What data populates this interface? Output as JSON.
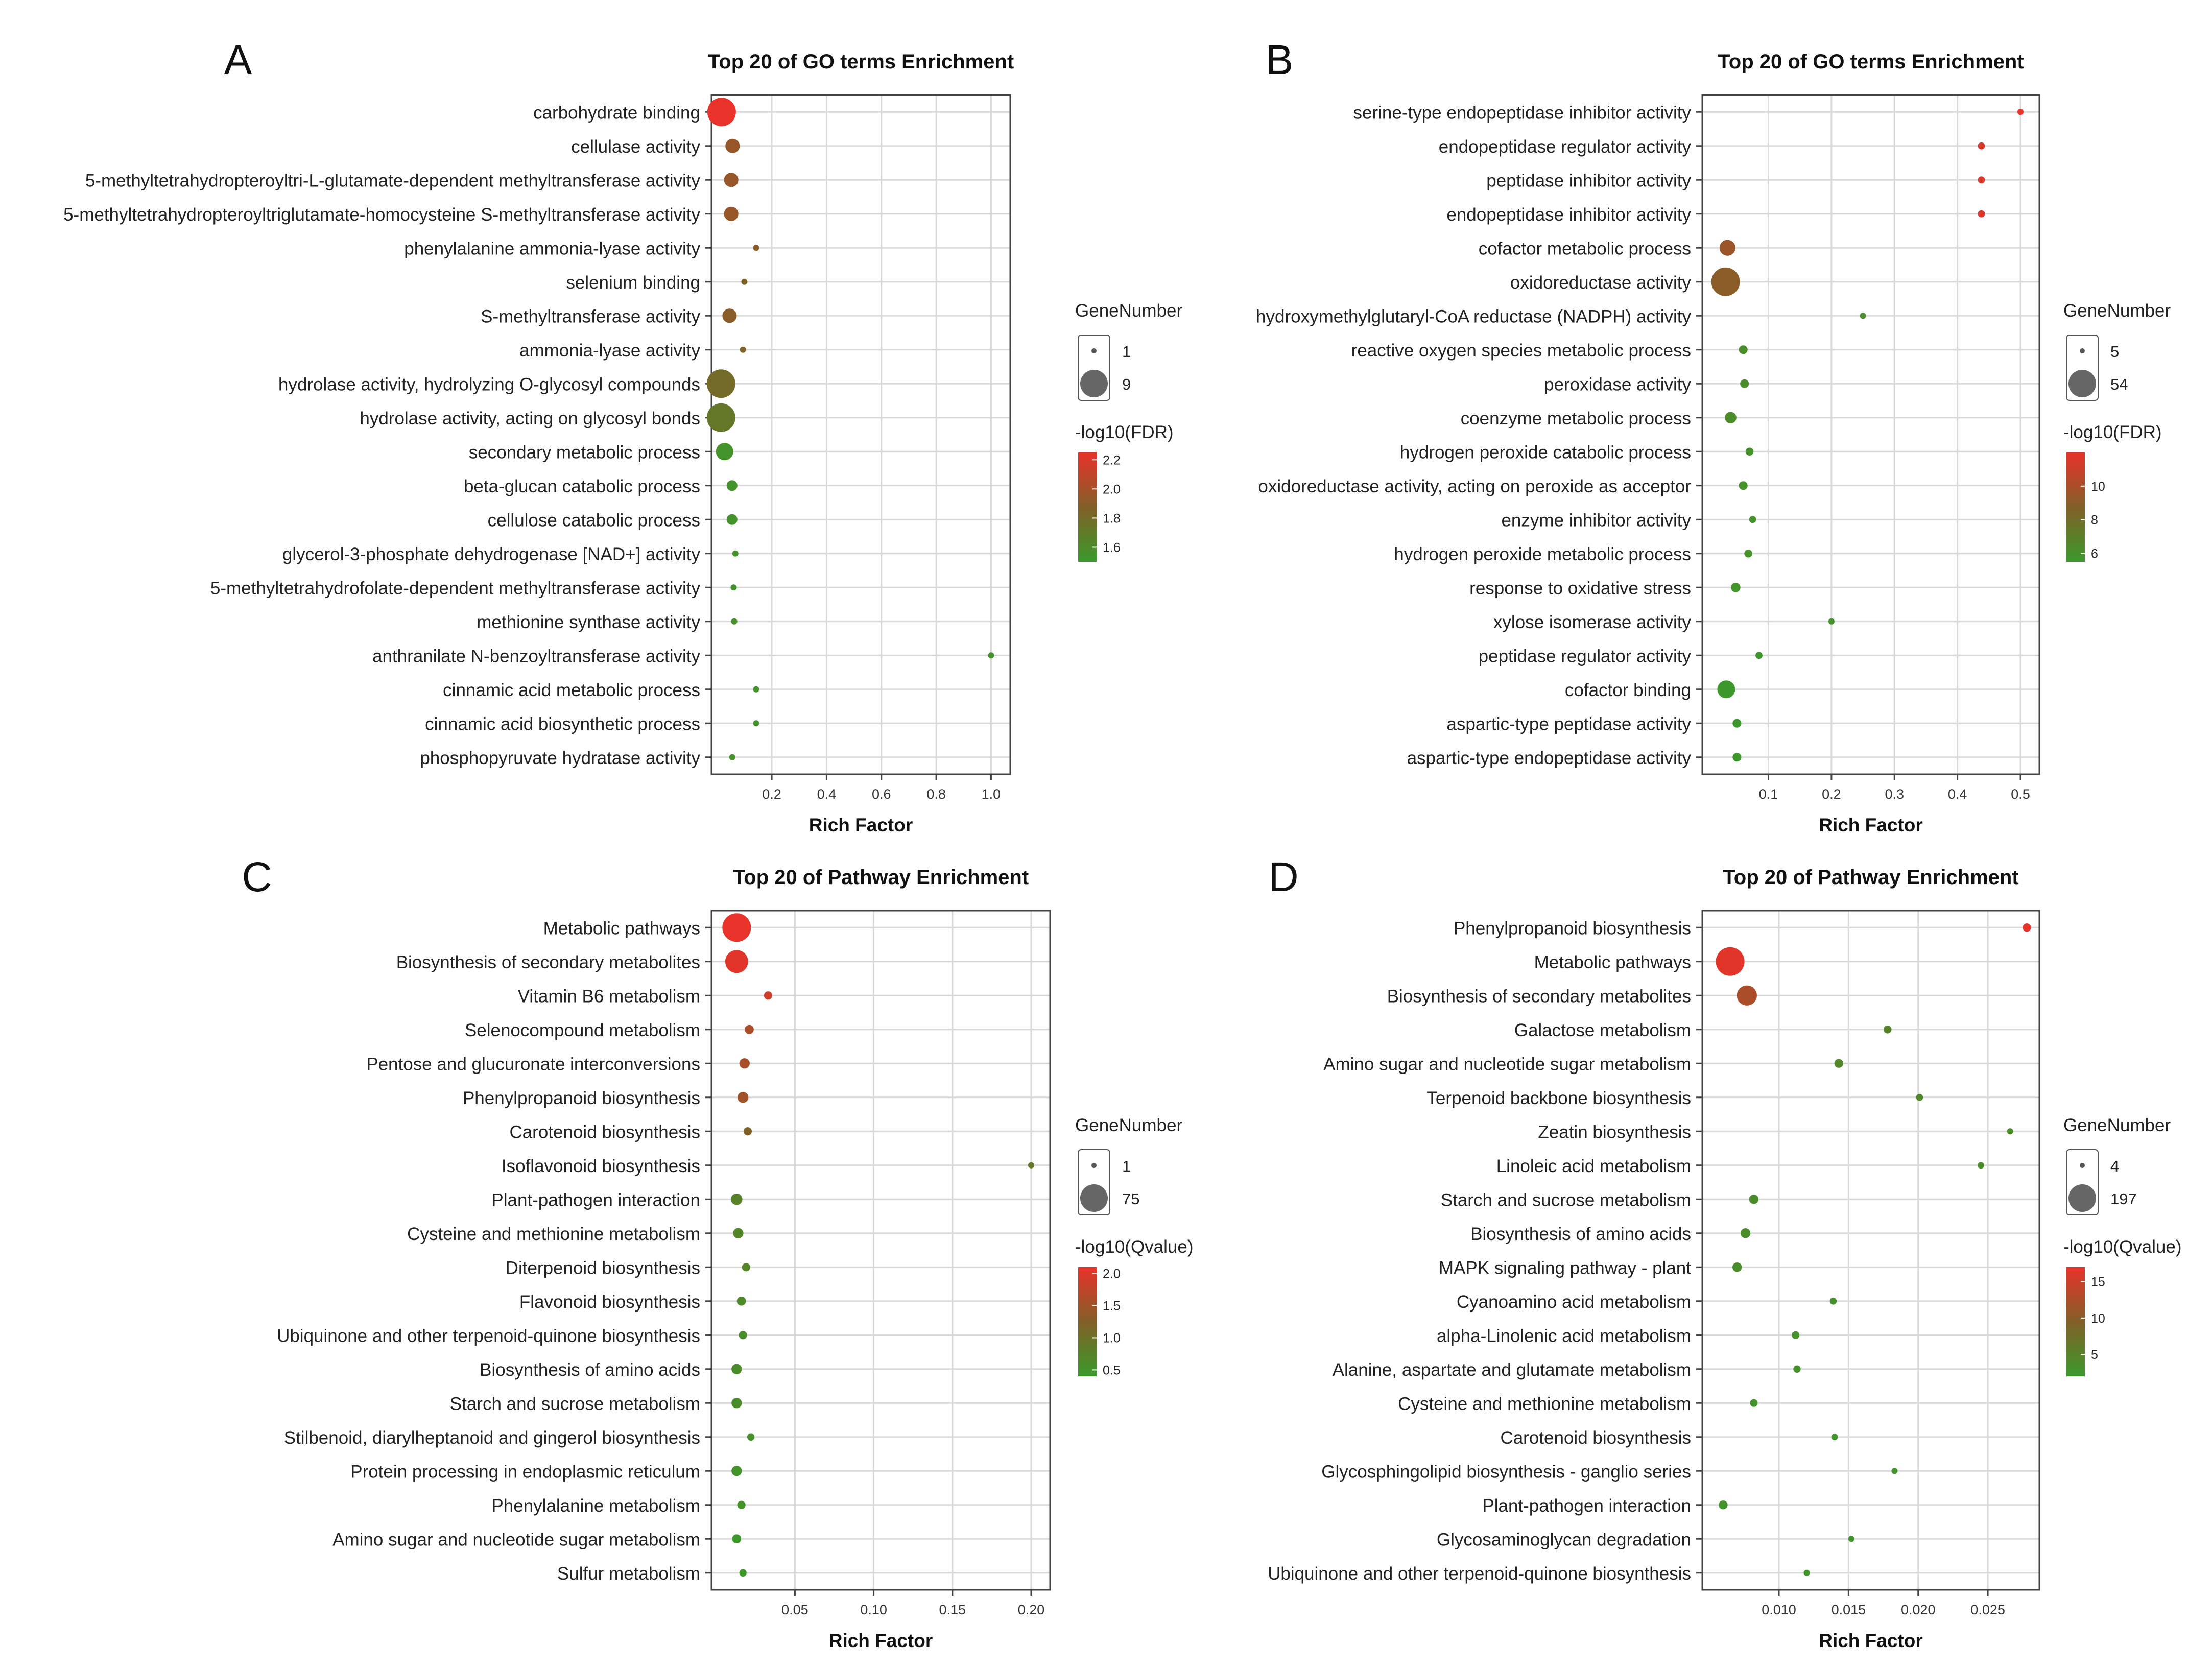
{
  "chart_data": [
    {
      "panel": "A",
      "type": "scatter",
      "title": "Top 20 of GO terms Enrichment",
      "xlabel": "Rich Factor",
      "ylabel": "",
      "xlim": [
        -0.02,
        1.07
      ],
      "xticks": [
        0.2,
        0.4,
        0.6,
        0.8,
        1.0
      ],
      "xtick_labels": [
        "0.2",
        "0.4",
        "0.6",
        "0.8",
        "1.0"
      ],
      "grid": true,
      "size_legend": {
        "title": "GeneNumber",
        "min": 1,
        "max": 9,
        "labels": [
          "1",
          "9"
        ]
      },
      "color_legend": {
        "title": "-log10(FDR)",
        "min": 1.5,
        "max": 2.25,
        "low_color": "#3a9a2a",
        "high_color": "#e8322a",
        "ticks": [
          2.2,
          2.0,
          1.8,
          1.6
        ],
        "tick_labels": [
          "2.2",
          "2.0",
          "1.8",
          "1.6"
        ]
      },
      "categories": [
        "carbohydrate binding",
        "cellulase activity",
        "5-methyltetrahydropteroyltri-L-glutamate-dependent methyltransferase activity",
        "5-methyltetrahydropteroyltriglutamate-homocysteine S-methyltransferase activity",
        "phenylalanine ammonia-lyase activity",
        "selenium binding",
        "S-methyltransferase activity",
        "ammonia-lyase activity",
        "hydrolase activity, hydrolyzing O-glycosyl compounds",
        "hydrolase activity, acting on glycosyl bonds",
        "secondary metabolic process",
        "beta-glucan catabolic process",
        "cellulose catabolic process",
        "glycerol-3-phosphate dehydrogenase [NAD+] activity",
        "5-methyltetrahydrofolate-dependent methyltransferase activity",
        "methionine synthase activity",
        "anthranilate N-benzoyltransferase activity",
        "cinnamic acid metabolic process",
        "cinnamic acid biosynthetic process",
        "phosphopyruvate hydratase activity"
      ],
      "x": [
        0.017,
        0.057,
        0.052,
        0.052,
        0.143,
        0.1,
        0.046,
        0.095,
        0.015,
        0.015,
        0.028,
        0.055,
        0.055,
        0.067,
        0.061,
        0.063,
        1.0,
        0.143,
        0.143,
        0.056
      ],
      "gene_number": [
        9,
        3,
        3,
        3,
        1,
        1,
        3,
        1,
        9,
        9,
        4,
        2,
        2,
        1,
        1,
        1,
        1,
        1,
        1,
        1
      ],
      "color_value": [
        2.25,
        1.95,
        1.95,
        1.95,
        1.9,
        1.85,
        1.9,
        1.85,
        1.8,
        1.72,
        1.55,
        1.55,
        1.55,
        1.55,
        1.55,
        1.55,
        1.55,
        1.55,
        1.55,
        1.55
      ]
    },
    {
      "panel": "B",
      "type": "scatter",
      "title": "Top 20 of GO terms Enrichment",
      "xlabel": "Rich Factor",
      "ylabel": "",
      "xlim": [
        -0.005,
        0.53
      ],
      "xticks": [
        0.1,
        0.2,
        0.3,
        0.4,
        0.5
      ],
      "xtick_labels": [
        "0.1",
        "0.2",
        "0.3",
        "0.4",
        "0.5"
      ],
      "grid": true,
      "size_legend": {
        "title": "GeneNumber",
        "min": 5,
        "max": 54,
        "labels": [
          "5",
          "54"
        ]
      },
      "color_legend": {
        "title": "-log10(FDR)",
        "min": 5.5,
        "max": 12,
        "low_color": "#3a9a2a",
        "high_color": "#e8322a",
        "ticks": [
          10,
          8,
          6
        ],
        "tick_labels": [
          "10",
          "8",
          "6"
        ]
      },
      "categories": [
        "serine-type endopeptidase inhibitor activity",
        "endopeptidase regulator activity",
        "peptidase inhibitor activity",
        "endopeptidase inhibitor activity",
        "cofactor metabolic process",
        "oxidoreductase activity",
        "hydroxymethylglutaryl-CoA reductase (NADPH) activity",
        "reactive oxygen species metabolic process",
        "peroxidase activity",
        "coenzyme metabolic process",
        "hydrogen peroxide catabolic process",
        "oxidoreductase activity, acting on peroxide as acceptor",
        "enzyme inhibitor activity",
        "hydrogen peroxide metabolic process",
        "response to oxidative stress",
        "xylose isomerase activity",
        "peptidase regulator activity",
        "cofactor binding",
        "aspartic-type peptidase activity",
        "aspartic-type endopeptidase activity"
      ],
      "x": [
        0.5,
        0.438,
        0.438,
        0.438,
        0.035,
        0.032,
        0.25,
        0.06,
        0.062,
        0.04,
        0.07,
        0.06,
        0.075,
        0.068,
        0.048,
        0.2,
        0.085,
        0.033,
        0.05,
        0.05
      ],
      "gene_number": [
        5,
        6,
        6,
        6,
        20,
        54,
        5,
        8,
        8,
        12,
        7,
        8,
        6,
        7,
        9,
        5,
        6,
        24,
        8,
        8
      ],
      "color_value": [
        12,
        11.5,
        11.5,
        11.5,
        9.5,
        9.0,
        6.2,
        6.2,
        6.2,
        6.3,
        6.0,
        6.0,
        5.9,
        5.9,
        5.8,
        5.9,
        5.7,
        5.6,
        5.6,
        5.6
      ]
    },
    {
      "panel": "C",
      "type": "scatter",
      "title": "Top 20 of Pathway Enrichment",
      "xlabel": "Rich Factor",
      "ylabel": "",
      "xlim": [
        -0.003,
        0.212
      ],
      "xticks": [
        0.05,
        0.1,
        0.15,
        0.2
      ],
      "xtick_labels": [
        "0.05",
        "0.10",
        "0.15",
        "0.20"
      ],
      "grid": true,
      "size_legend": {
        "title": "GeneNumber",
        "min": 1,
        "max": 75,
        "labels": [
          "1",
          "75"
        ]
      },
      "color_legend": {
        "title": "-log10(Qvalue)",
        "min": 0.4,
        "max": 2.1,
        "low_color": "#3a9a2a",
        "high_color": "#e8322a",
        "ticks": [
          2.0,
          1.5,
          1.0,
          0.5
        ],
        "tick_labels": [
          "2.0",
          "1.5",
          "1.0",
          "0.5"
        ]
      },
      "categories": [
        "Metabolic pathways",
        "Biosynthesis of secondary metabolites",
        "Vitamin B6 metabolism",
        "Selenocompound metabolism",
        "Pentose and glucuronate interconversions",
        "Phenylpropanoid biosynthesis",
        "Carotenoid biosynthesis",
        "Isoflavonoid biosynthesis",
        "Plant-pathogen interaction",
        "Cysteine and methionine metabolism",
        "Diterpenoid biosynthesis",
        "Flavonoid biosynthesis",
        "Ubiquinone and other terpenoid-quinone biosynthesis",
        "Biosynthesis of amino acids",
        "Starch and sucrose metabolism",
        "Stilbenoid, diarylheptanoid and gingerol biosynthesis",
        "Protein processing in endoplasmic reticulum",
        "Phenylalanine metabolism",
        "Amino sugar and nucleotide sugar metabolism",
        "Sulfur metabolism"
      ],
      "x": [
        0.013,
        0.013,
        0.033,
        0.021,
        0.018,
        0.017,
        0.02,
        0.2,
        0.013,
        0.014,
        0.019,
        0.016,
        0.017,
        0.013,
        0.013,
        0.022,
        0.013,
        0.016,
        0.013,
        0.017
      ],
      "gene_number": [
        75,
        45,
        3,
        4,
        6,
        7,
        3,
        1,
        8,
        6,
        3,
        4,
        3,
        6,
        6,
        2,
        6,
        3,
        4,
        2
      ],
      "color_value": [
        2.1,
        2.05,
        1.9,
        1.6,
        1.55,
        1.5,
        1.2,
        0.9,
        0.75,
        0.7,
        0.7,
        0.65,
        0.6,
        0.6,
        0.6,
        0.55,
        0.5,
        0.5,
        0.45,
        0.45
      ]
    },
    {
      "panel": "D",
      "type": "scatter",
      "title": "Top 20 of Pathway Enrichment",
      "xlabel": "Rich Factor",
      "ylabel": "",
      "xlim": [
        0.0045,
        0.0287
      ],
      "xticks": [
        0.01,
        0.015,
        0.02,
        0.025
      ],
      "xtick_labels": [
        "0.010",
        "0.015",
        "0.020",
        "0.025"
      ],
      "grid": true,
      "size_legend": {
        "title": "GeneNumber",
        "min": 4,
        "max": 197,
        "labels": [
          "4",
          "197"
        ]
      },
      "color_legend": {
        "title": "-log10(Qvalue)",
        "min": 2,
        "max": 17,
        "low_color": "#3a9a2a",
        "high_color": "#e8322a",
        "ticks": [
          15,
          10,
          5
        ],
        "tick_labels": [
          "15",
          "10",
          "5"
        ]
      },
      "categories": [
        "Phenylpropanoid biosynthesis",
        "Metabolic pathways",
        "Biosynthesis of secondary metabolites",
        "Galactose metabolism",
        "Amino sugar and nucleotide sugar metabolism",
        "Terpenoid backbone biosynthesis",
        "Zeatin biosynthesis",
        "Linoleic acid metabolism",
        "Starch and sucrose metabolism",
        "Biosynthesis of amino acids",
        "MAPK signaling pathway - plant",
        "Cyanoamino acid metabolism",
        "alpha-Linolenic acid metabolism",
        "Alanine, aspartate and glutamate metabolism",
        "Cysteine and methionine metabolism",
        "Carotenoid biosynthesis",
        "Glycosphingolipid biosynthesis - ganglio series",
        "Plant-pathogen interaction",
        "Glycosaminoglycan degradation",
        "Ubiquinone and other terpenoid-quinone biosynthesis"
      ],
      "x": [
        0.0278,
        0.0065,
        0.0077,
        0.0178,
        0.0143,
        0.0201,
        0.0266,
        0.0245,
        0.0082,
        0.0076,
        0.007,
        0.0139,
        0.0112,
        0.0113,
        0.0082,
        0.014,
        0.0183,
        0.006,
        0.0152,
        0.012
      ],
      "gene_number": [
        10,
        197,
        90,
        9,
        12,
        6,
        4,
        5,
        14,
        16,
        14,
        6,
        8,
        7,
        8,
        5,
        4,
        12,
        4,
        4
      ],
      "color_value": [
        17,
        16.5,
        12.5,
        4.8,
        4.5,
        4.2,
        4.0,
        3.8,
        3.8,
        3.6,
        3.5,
        3.3,
        3.2,
        3.1,
        3.0,
        2.9,
        2.8,
        2.8,
        2.7,
        2.6
      ]
    }
  ],
  "panel_letters": [
    "A",
    "B",
    "C",
    "D"
  ],
  "legend_bg_color": "#ffffff",
  "grid_color": "#d9d9d9",
  "frame_color": "#444444"
}
